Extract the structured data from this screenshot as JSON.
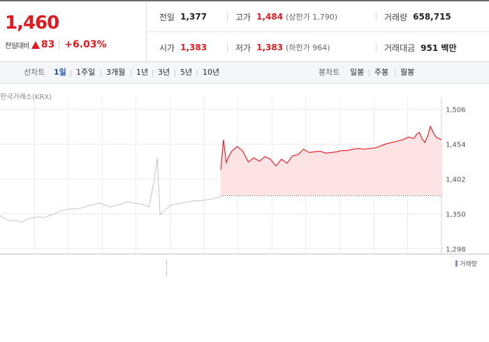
{
  "quote": {
    "price": "1,460",
    "change_label": "전일대비",
    "change_value": "83",
    "change_pct": "+6.03%",
    "up_color": "#e0191f"
  },
  "stats": {
    "row1": [
      {
        "label": "전일",
        "value": "1,377",
        "color": "black"
      },
      {
        "label": "고가",
        "value": "1,484",
        "sub": "(상한가 1,790)",
        "color": "red"
      },
      {
        "label": "거래량",
        "value": "658,715",
        "color": "black"
      }
    ],
    "row2": [
      {
        "label": "시가",
        "value": "1,383",
        "color": "red"
      },
      {
        "label": "저가",
        "value": "1,383",
        "sub": "(하한가 964)",
        "color": "red"
      },
      {
        "label": "거래대금",
        "value": "951 백만",
        "color": "black"
      }
    ]
  },
  "toolbar": {
    "line_chart_label": "선차트",
    "periods": [
      "1일",
      "1주일",
      "3개월",
      "1년",
      "3년",
      "5년",
      "10년"
    ],
    "active_period": "1일",
    "candle_chart_label": "봉차트",
    "candle_periods": [
      "일봉",
      "주봉",
      "월봉"
    ]
  },
  "chart": {
    "exchange_label": "한국거래소(KRX)",
    "volume_legend": "거래량"
  },
  "chart_data": {
    "type": "line",
    "title": "",
    "xlabel": "",
    "ylabel": "",
    "ylim": [
      1298,
      1506
    ],
    "y_ticks": [
      "1,506",
      "1,454",
      "1,402",
      "1,350",
      "1,298"
    ],
    "y_tick_values": [
      1506,
      1454,
      1402,
      1350,
      1298
    ],
    "grid": true,
    "reference_price": 1377,
    "series": [
      {
        "segment": "previous-day",
        "color": "#c4c4c4",
        "x": [
          0,
          2,
          4,
          6,
          8,
          10,
          12,
          14,
          16,
          18,
          20,
          22,
          24,
          26,
          28,
          30,
          32,
          34,
          36,
          38,
          40,
          42,
          44,
          46,
          48,
          50,
          52,
          54,
          56,
          57,
          58,
          60,
          62,
          64,
          66,
          68,
          70,
          72,
          74,
          76,
          78,
          80
        ],
        "values": [
          1347,
          1342,
          1339,
          1340,
          1337,
          1342,
          1344,
          1345,
          1344,
          1347,
          1350,
          1354,
          1356,
          1357,
          1357,
          1359,
          1362,
          1363,
          1366,
          1363,
          1360,
          1362,
          1364,
          1368,
          1366,
          1365,
          1363,
          1360,
          1402,
          1433,
          1348,
          1356,
          1363,
          1364,
          1366,
          1367,
          1369,
          1369,
          1370,
          1371,
          1373,
          1375
        ]
      },
      {
        "segment": "today",
        "color": "#e8222a",
        "x": [
          80,
          81,
          82,
          83,
          84,
          86,
          88,
          90,
          92,
          94,
          96,
          98,
          100,
          102,
          104,
          106,
          108,
          110,
          112,
          114,
          116,
          118,
          120,
          122,
          124,
          126,
          128,
          130,
          132,
          134,
          136,
          138,
          140,
          142,
          144,
          146,
          148,
          150,
          151,
          152,
          153,
          154,
          155,
          156,
          157,
          158,
          160
        ],
        "values": [
          1415,
          1460,
          1426,
          1436,
          1443,
          1450,
          1443,
          1427,
          1433,
          1428,
          1435,
          1431,
          1421,
          1431,
          1425,
          1436,
          1438,
          1446,
          1441,
          1442,
          1443,
          1440,
          1441,
          1442,
          1444,
          1444,
          1446,
          1447,
          1446,
          1447,
          1448,
          1451,
          1454,
          1456,
          1458,
          1460,
          1464,
          1462,
          1468,
          1471,
          1461,
          1456,
          1466,
          1480,
          1471,
          1464,
          1460
        ]
      }
    ]
  }
}
